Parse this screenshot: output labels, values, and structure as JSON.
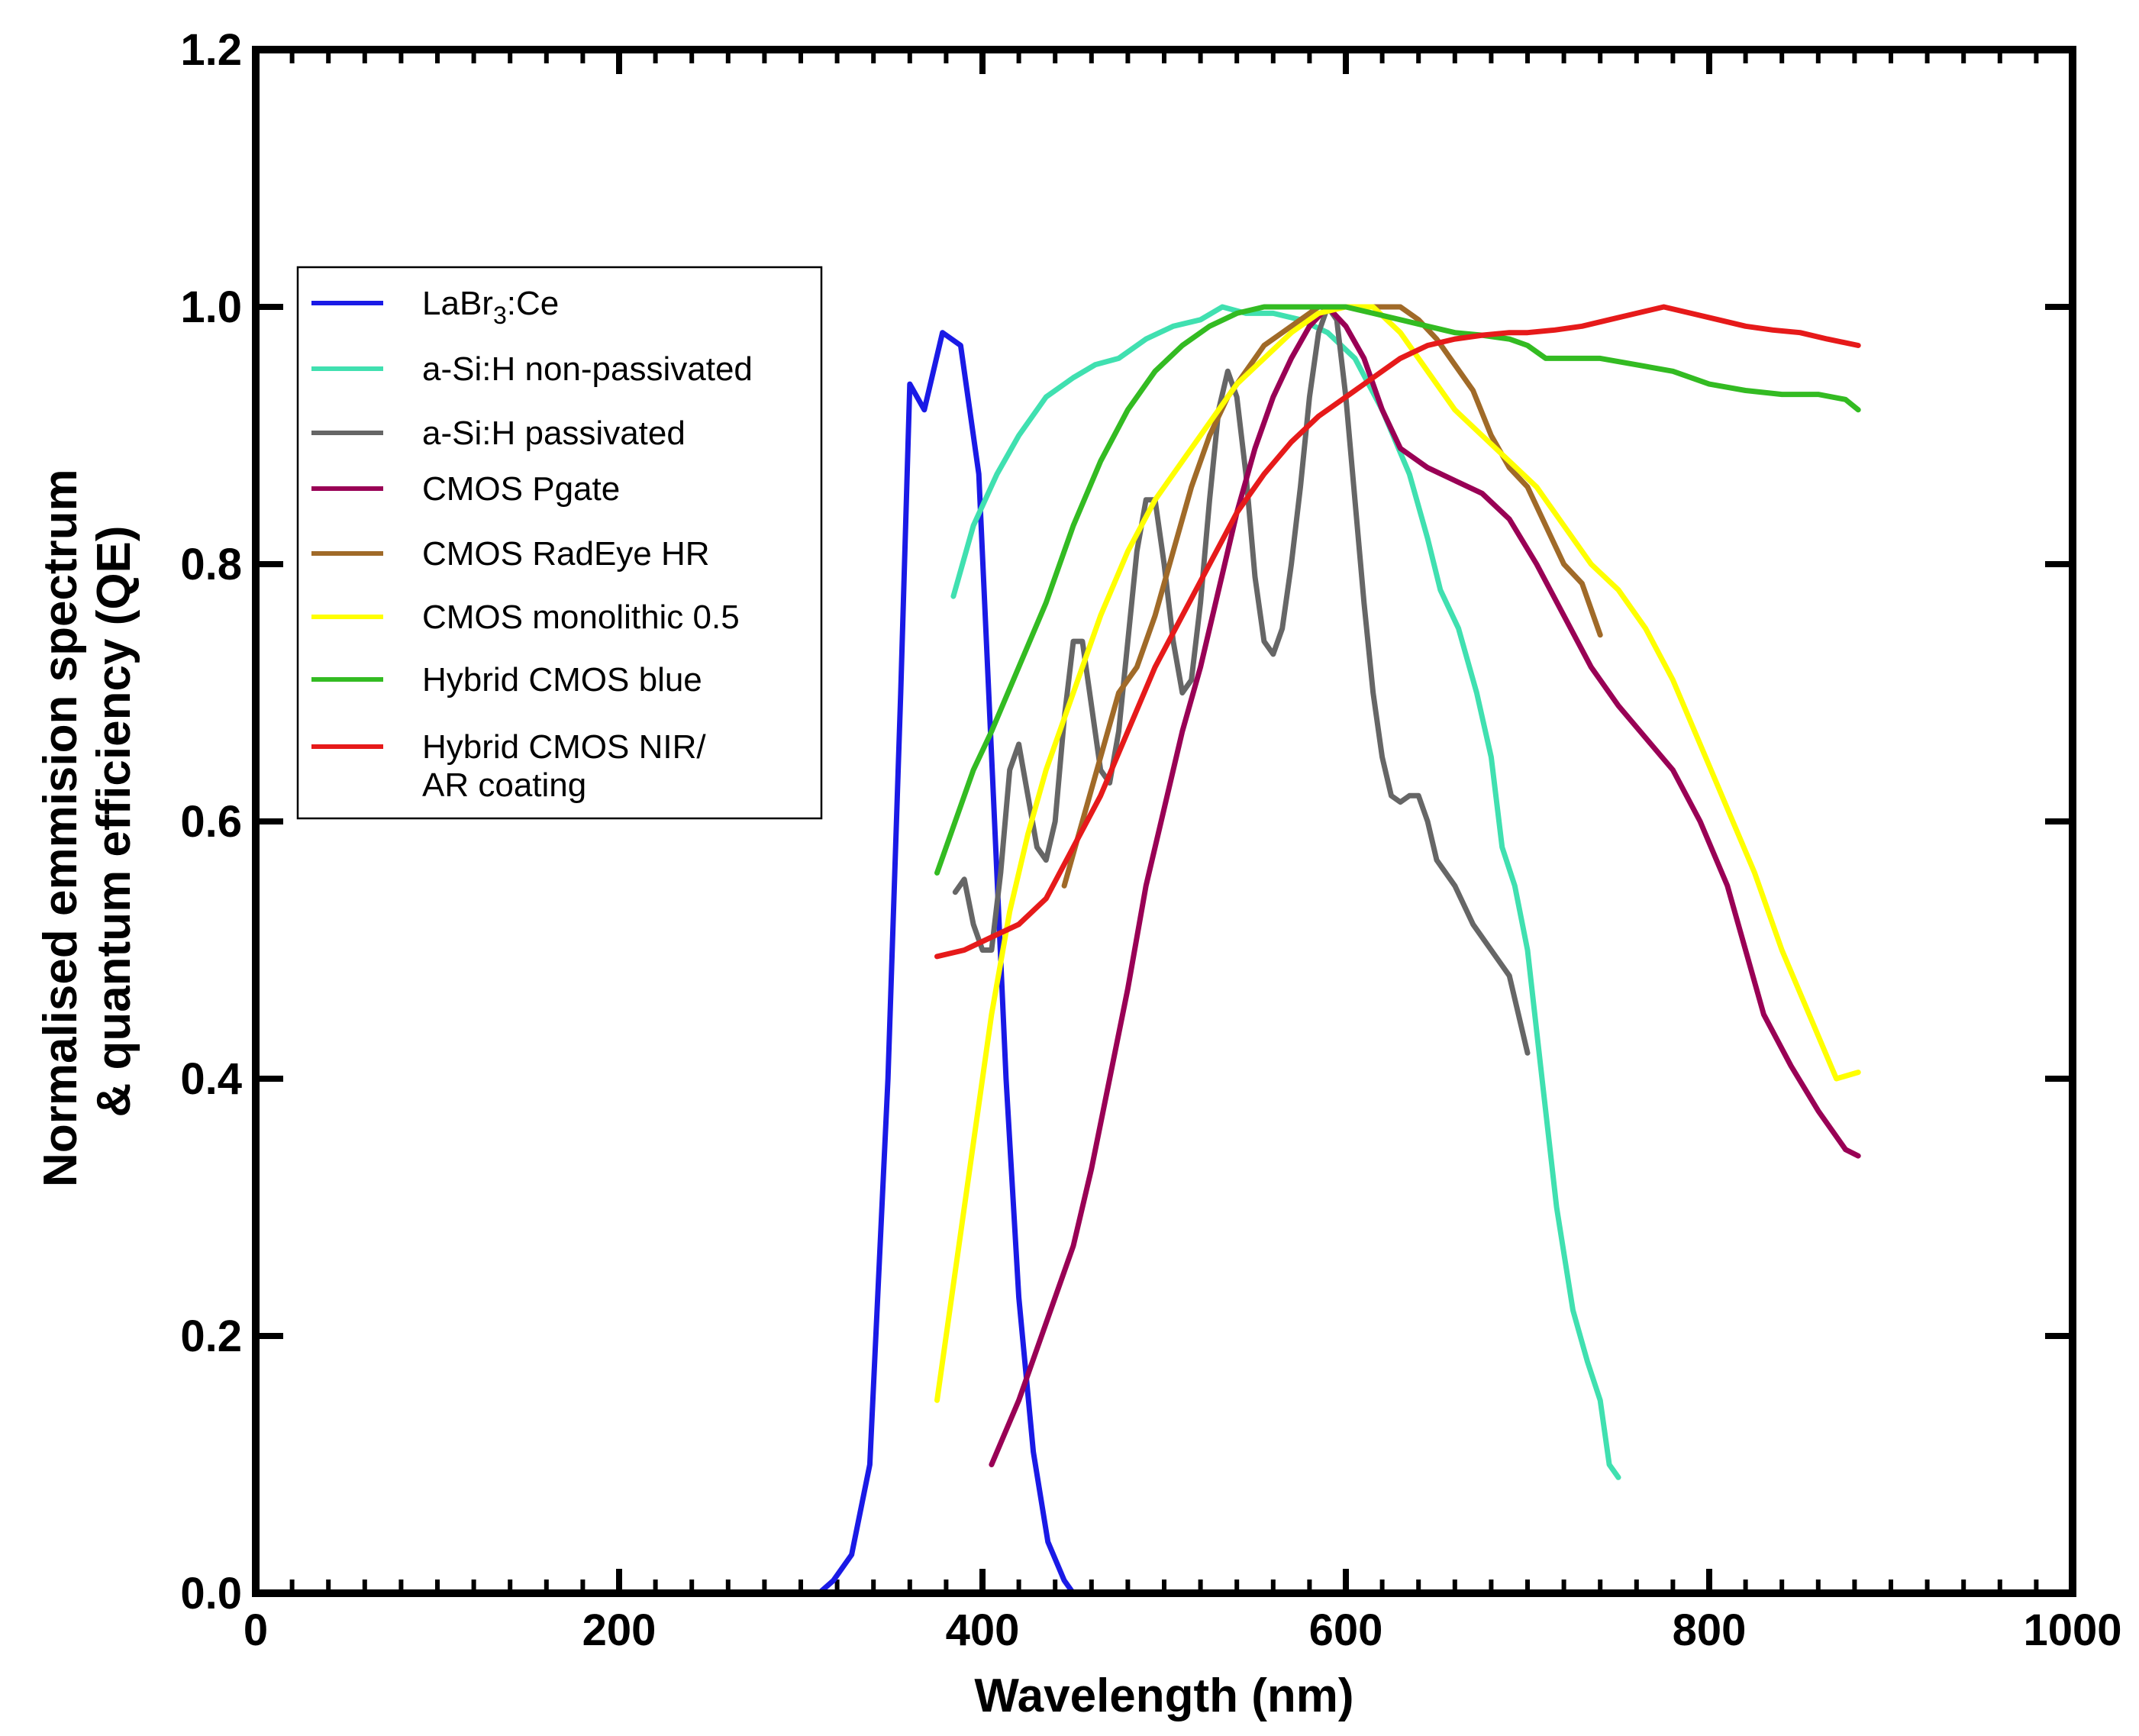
{
  "chart_data": {
    "type": "line",
    "title": "",
    "xlabel": "Wavelength (nm)",
    "ylabel_lines": [
      "Normalised emmision spectrum",
      "& quantum efficiency (QE)"
    ],
    "xlim": [
      0,
      1000
    ],
    "ylim": [
      0,
      1.2
    ],
    "xticks": [
      "0",
      "200",
      "400",
      "600",
      "800",
      "1000"
    ],
    "yticks": [
      "0.0",
      "0.2",
      "0.4",
      "0.6",
      "0.8",
      "1.0",
      "1.2"
    ],
    "grid": false,
    "legend_position": "upper-left",
    "series": [
      {
        "name": "LaBr3:Ce",
        "label_main": "LaBr",
        "label_sub": "3",
        "label_tail": ":Ce",
        "color": "#1a1ae6",
        "points": [
          [
            310,
            0.0
          ],
          [
            318,
            0.01
          ],
          [
            328,
            0.03
          ],
          [
            338,
            0.1
          ],
          [
            348,
            0.4
          ],
          [
            355,
            0.7
          ],
          [
            360,
            0.94
          ],
          [
            368,
            0.92
          ],
          [
            378,
            0.98
          ],
          [
            388,
            0.97
          ],
          [
            398,
            0.87
          ],
          [
            406,
            0.62
          ],
          [
            413,
            0.4
          ],
          [
            420,
            0.23
          ],
          [
            428,
            0.11
          ],
          [
            436,
            0.04
          ],
          [
            445,
            0.01
          ],
          [
            450,
            0.0
          ]
        ]
      },
      {
        "name": "a-Si:H non-passivated",
        "color": "#40e0b0",
        "points": [
          [
            384,
            0.775
          ],
          [
            395,
            0.83
          ],
          [
            408,
            0.87
          ],
          [
            420,
            0.9
          ],
          [
            435,
            0.93
          ],
          [
            450,
            0.945
          ],
          [
            462,
            0.955
          ],
          [
            475,
            0.96
          ],
          [
            490,
            0.975
          ],
          [
            505,
            0.985
          ],
          [
            520,
            0.99
          ],
          [
            532,
            1.0
          ],
          [
            545,
            0.995
          ],
          [
            560,
            0.995
          ],
          [
            575,
            0.99
          ],
          [
            590,
            0.98
          ],
          [
            605,
            0.96
          ],
          [
            620,
            0.92
          ],
          [
            635,
            0.87
          ],
          [
            645,
            0.82
          ],
          [
            652,
            0.78
          ],
          [
            662,
            0.75
          ],
          [
            672,
            0.7
          ],
          [
            680,
            0.65
          ],
          [
            686,
            0.58
          ],
          [
            693,
            0.55
          ],
          [
            700,
            0.5
          ],
          [
            708,
            0.4
          ],
          [
            716,
            0.3
          ],
          [
            725,
            0.22
          ],
          [
            733,
            0.18
          ],
          [
            740,
            0.15
          ],
          [
            745,
            0.1
          ],
          [
            750,
            0.09
          ]
        ]
      },
      {
        "name": "a-Si:H passivated",
        "color": "#666666",
        "points": [
          [
            385,
            0.545
          ],
          [
            390,
            0.555
          ],
          [
            395,
            0.52
          ],
          [
            400,
            0.5
          ],
          [
            405,
            0.5
          ],
          [
            410,
            0.56
          ],
          [
            415,
            0.64
          ],
          [
            420,
            0.66
          ],
          [
            425,
            0.62
          ],
          [
            430,
            0.58
          ],
          [
            435,
            0.57
          ],
          [
            440,
            0.6
          ],
          [
            445,
            0.68
          ],
          [
            450,
            0.74
          ],
          [
            455,
            0.74
          ],
          [
            460,
            0.69
          ],
          [
            465,
            0.64
          ],
          [
            470,
            0.63
          ],
          [
            475,
            0.67
          ],
          [
            480,
            0.74
          ],
          [
            485,
            0.81
          ],
          [
            490,
            0.85
          ],
          [
            495,
            0.85
          ],
          [
            500,
            0.8
          ],
          [
            505,
            0.74
          ],
          [
            510,
            0.7
          ],
          [
            515,
            0.71
          ],
          [
            520,
            0.77
          ],
          [
            525,
            0.85
          ],
          [
            530,
            0.92
          ],
          [
            535,
            0.95
          ],
          [
            540,
            0.93
          ],
          [
            545,
            0.87
          ],
          [
            550,
            0.79
          ],
          [
            555,
            0.74
          ],
          [
            560,
            0.73
          ],
          [
            565,
            0.75
          ],
          [
            570,
            0.8
          ],
          [
            575,
            0.86
          ],
          [
            580,
            0.93
          ],
          [
            585,
            0.98
          ],
          [
            590,
            1.0
          ],
          [
            595,
            0.99
          ],
          [
            600,
            0.93
          ],
          [
            605,
            0.85
          ],
          [
            610,
            0.77
          ],
          [
            615,
            0.7
          ],
          [
            620,
            0.65
          ],
          [
            625,
            0.62
          ],
          [
            630,
            0.615
          ],
          [
            635,
            0.62
          ],
          [
            640,
            0.62
          ],
          [
            645,
            0.6
          ],
          [
            650,
            0.57
          ],
          [
            660,
            0.55
          ],
          [
            670,
            0.52
          ],
          [
            680,
            0.5
          ],
          [
            690,
            0.48
          ],
          [
            700,
            0.42
          ]
        ]
      },
      {
        "name": "CMOS Pgate",
        "color": "#990055",
        "points": [
          [
            405,
            0.1
          ],
          [
            420,
            0.15
          ],
          [
            435,
            0.21
          ],
          [
            450,
            0.27
          ],
          [
            460,
            0.33
          ],
          [
            470,
            0.4
          ],
          [
            480,
            0.47
          ],
          [
            490,
            0.55
          ],
          [
            500,
            0.61
          ],
          [
            510,
            0.67
          ],
          [
            520,
            0.72
          ],
          [
            530,
            0.78
          ],
          [
            540,
            0.84
          ],
          [
            550,
            0.89
          ],
          [
            560,
            0.93
          ],
          [
            570,
            0.96
          ],
          [
            580,
            0.985
          ],
          [
            590,
            1.0
          ],
          [
            600,
            0.985
          ],
          [
            610,
            0.96
          ],
          [
            620,
            0.92
          ],
          [
            630,
            0.89
          ],
          [
            645,
            0.875
          ],
          [
            660,
            0.865
          ],
          [
            675,
            0.855
          ],
          [
            690,
            0.835
          ],
          [
            705,
            0.8
          ],
          [
            720,
            0.76
          ],
          [
            735,
            0.72
          ],
          [
            750,
            0.69
          ],
          [
            765,
            0.665
          ],
          [
            780,
            0.64
          ],
          [
            795,
            0.6
          ],
          [
            810,
            0.55
          ],
          [
            820,
            0.5
          ],
          [
            830,
            0.45
          ],
          [
            845,
            0.41
          ],
          [
            860,
            0.375
          ],
          [
            875,
            0.345
          ],
          [
            882,
            0.34
          ]
        ]
      },
      {
        "name": "CMOS RadEye HR",
        "color": "#a06a28",
        "points": [
          [
            445,
            0.55
          ],
          [
            455,
            0.6
          ],
          [
            465,
            0.65
          ],
          [
            475,
            0.7
          ],
          [
            485,
            0.72
          ],
          [
            495,
            0.76
          ],
          [
            505,
            0.81
          ],
          [
            515,
            0.86
          ],
          [
            525,
            0.9
          ],
          [
            535,
            0.93
          ],
          [
            545,
            0.95
          ],
          [
            555,
            0.97
          ],
          [
            565,
            0.98
          ],
          [
            575,
            0.99
          ],
          [
            585,
            1.0
          ],
          [
            600,
            1.0
          ],
          [
            615,
            1.0
          ],
          [
            630,
            1.0
          ],
          [
            640,
            0.99
          ],
          [
            650,
            0.975
          ],
          [
            660,
            0.955
          ],
          [
            670,
            0.935
          ],
          [
            680,
            0.9
          ],
          [
            690,
            0.875
          ],
          [
            700,
            0.86
          ],
          [
            710,
            0.83
          ],
          [
            720,
            0.8
          ],
          [
            730,
            0.785
          ],
          [
            740,
            0.745
          ]
        ]
      },
      {
        "name": "CMOS monolithic 0.5",
        "color": "#ffff00",
        "points": [
          [
            375,
            0.15
          ],
          [
            385,
            0.25
          ],
          [
            395,
            0.35
          ],
          [
            405,
            0.45
          ],
          [
            415,
            0.53
          ],
          [
            425,
            0.59
          ],
          [
            435,
            0.64
          ],
          [
            450,
            0.7
          ],
          [
            465,
            0.76
          ],
          [
            480,
            0.81
          ],
          [
            495,
            0.85
          ],
          [
            510,
            0.88
          ],
          [
            525,
            0.91
          ],
          [
            540,
            0.94
          ],
          [
            555,
            0.96
          ],
          [
            570,
            0.98
          ],
          [
            585,
            0.995
          ],
          [
            600,
            1.0
          ],
          [
            615,
            1.0
          ],
          [
            630,
            0.98
          ],
          [
            645,
            0.95
          ],
          [
            660,
            0.92
          ],
          [
            675,
            0.9
          ],
          [
            690,
            0.88
          ],
          [
            705,
            0.86
          ],
          [
            720,
            0.83
          ],
          [
            735,
            0.8
          ],
          [
            750,
            0.78
          ],
          [
            765,
            0.75
          ],
          [
            780,
            0.71
          ],
          [
            795,
            0.66
          ],
          [
            810,
            0.61
          ],
          [
            825,
            0.56
          ],
          [
            840,
            0.5
          ],
          [
            855,
            0.45
          ],
          [
            870,
            0.4
          ],
          [
            882,
            0.405
          ]
        ]
      },
      {
        "name": "Hybrid CMOS blue",
        "color": "#33bb22",
        "points": [
          [
            375,
            0.56
          ],
          [
            385,
            0.6
          ],
          [
            395,
            0.64
          ],
          [
            405,
            0.67
          ],
          [
            420,
            0.72
          ],
          [
            435,
            0.77
          ],
          [
            450,
            0.83
          ],
          [
            465,
            0.88
          ],
          [
            480,
            0.92
          ],
          [
            495,
            0.95
          ],
          [
            510,
            0.97
          ],
          [
            525,
            0.985
          ],
          [
            540,
            0.995
          ],
          [
            555,
            1.0
          ],
          [
            570,
            1.0
          ],
          [
            585,
            1.0
          ],
          [
            600,
            1.0
          ],
          [
            615,
            0.995
          ],
          [
            630,
            0.99
          ],
          [
            645,
            0.985
          ],
          [
            660,
            0.98
          ],
          [
            675,
            0.978
          ],
          [
            690,
            0.975
          ],
          [
            700,
            0.97
          ],
          [
            710,
            0.96
          ],
          [
            725,
            0.96
          ],
          [
            740,
            0.96
          ],
          [
            760,
            0.955
          ],
          [
            780,
            0.95
          ],
          [
            800,
            0.94
          ],
          [
            820,
            0.935
          ],
          [
            840,
            0.932
          ],
          [
            860,
            0.932
          ],
          [
            875,
            0.928
          ],
          [
            882,
            0.92
          ]
        ]
      },
      {
        "name": "Hybrid CMOS NIR/ AR coating",
        "label_line1": "Hybrid CMOS NIR/",
        "label_line2": "AR coating",
        "color": "#e61a1a",
        "points": [
          [
            375,
            0.495
          ],
          [
            390,
            0.5
          ],
          [
            405,
            0.51
          ],
          [
            420,
            0.52
          ],
          [
            435,
            0.54
          ],
          [
            450,
            0.58
          ],
          [
            465,
            0.62
          ],
          [
            480,
            0.67
          ],
          [
            495,
            0.72
          ],
          [
            510,
            0.76
          ],
          [
            525,
            0.8
          ],
          [
            540,
            0.84
          ],
          [
            555,
            0.87
          ],
          [
            570,
            0.895
          ],
          [
            585,
            0.915
          ],
          [
            600,
            0.93
          ],
          [
            615,
            0.945
          ],
          [
            630,
            0.96
          ],
          [
            645,
            0.97
          ],
          [
            660,
            0.975
          ],
          [
            675,
            0.978
          ],
          [
            690,
            0.98
          ],
          [
            700,
            0.98
          ],
          [
            715,
            0.982
          ],
          [
            730,
            0.985
          ],
          [
            745,
            0.99
          ],
          [
            760,
            0.995
          ],
          [
            775,
            1.0
          ],
          [
            790,
            0.995
          ],
          [
            805,
            0.99
          ],
          [
            820,
            0.985
          ],
          [
            835,
            0.982
          ],
          [
            850,
            0.98
          ],
          [
            865,
            0.975
          ],
          [
            882,
            0.97
          ]
        ]
      }
    ]
  }
}
